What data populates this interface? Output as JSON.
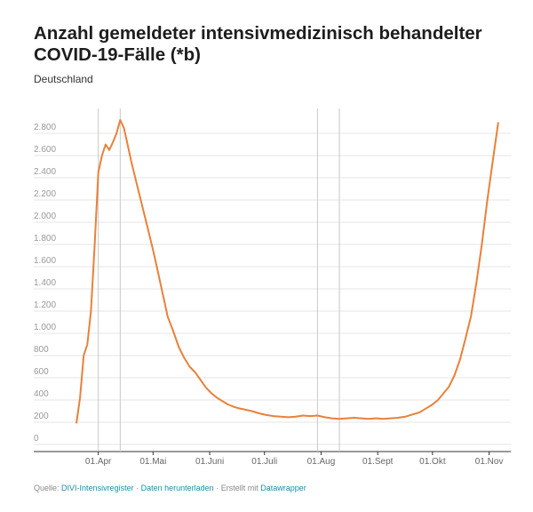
{
  "title": "Anzahl gemeldeter intensivmedizinisch behandelter COVID-19-Fälle (*b)",
  "subtitle": "Deutschland",
  "footer": {
    "source_prefix": "Quelle:",
    "source_link": "DIVI-Intensivregister",
    "sep1": "·",
    "download": "Daten herunterladen",
    "sep2": "·",
    "created_prefix": "Erstellt mit",
    "tool": "Datawrapper"
  },
  "colors": {
    "line": "#e8813a",
    "grid": "#e6e6e6",
    "vline": "#c8c8c8"
  },
  "chart_data": {
    "type": "line",
    "title": "Anzahl gemeldeter intensivmedizinisch behandelter COVID-19-Fälle (*b)",
    "subtitle": "Deutschland",
    "xlabel": "",
    "ylabel": "",
    "ylim": [
      0,
      2800
    ],
    "yticks": [
      {
        "v": 0,
        "label": "0"
      },
      {
        "v": 200,
        "label": "200"
      },
      {
        "v": 400,
        "label": "400"
      },
      {
        "v": 600,
        "label": "600"
      },
      {
        "v": 800,
        "label": "800"
      },
      {
        "v": 1000,
        "label": "1.000"
      },
      {
        "v": 1200,
        "label": "1.200"
      },
      {
        "v": 1400,
        "label": "1.400"
      },
      {
        "v": 1600,
        "label": "1.600"
      },
      {
        "v": 1800,
        "label": "1.800"
      },
      {
        "v": 2000,
        "label": "2.000"
      },
      {
        "v": 2200,
        "label": "2.200"
      },
      {
        "v": 2400,
        "label": "2.400"
      },
      {
        "v": 2600,
        "label": "2.600"
      },
      {
        "v": 2800,
        "label": "2.800"
      }
    ],
    "xticks": [
      {
        "d": "2020-04-01",
        "label": "01.Apr"
      },
      {
        "d": "2020-05-01",
        "label": "01.Mai"
      },
      {
        "d": "2020-06-01",
        "label": "01.Juni"
      },
      {
        "d": "2020-07-01",
        "label": "01.Juli"
      },
      {
        "d": "2020-08-01",
        "label": "01.Aug"
      },
      {
        "d": "2020-09-01",
        "label": "01.Sept"
      },
      {
        "d": "2020-10-01",
        "label": "01.Okt"
      },
      {
        "d": "2020-11-01",
        "label": "01.Nov"
      }
    ],
    "xlim": [
      "2020-03-20",
      "2020-11-08"
    ],
    "vertical_lines": [
      "2020-04-01",
      "2020-04-13",
      "2020-07-30",
      "2020-08-11"
    ],
    "grid": true,
    "series": [
      {
        "points": [
          [
            "2020-03-20",
            190
          ],
          [
            "2020-03-22",
            420
          ],
          [
            "2020-03-24",
            800
          ],
          [
            "2020-03-26",
            900
          ],
          [
            "2020-03-28",
            1200
          ],
          [
            "2020-03-30",
            1800
          ],
          [
            "2020-04-01",
            2450
          ],
          [
            "2020-04-03",
            2600
          ],
          [
            "2020-04-05",
            2700
          ],
          [
            "2020-04-07",
            2650
          ],
          [
            "2020-04-09",
            2720
          ],
          [
            "2020-04-11",
            2800
          ],
          [
            "2020-04-13",
            2920
          ],
          [
            "2020-04-15",
            2850
          ],
          [
            "2020-04-17",
            2700
          ],
          [
            "2020-04-19",
            2550
          ],
          [
            "2020-04-22",
            2350
          ],
          [
            "2020-04-25",
            2150
          ],
          [
            "2020-04-28",
            1950
          ],
          [
            "2020-05-01",
            1750
          ],
          [
            "2020-05-03",
            1600
          ],
          [
            "2020-05-05",
            1450
          ],
          [
            "2020-05-07",
            1300
          ],
          [
            "2020-05-09",
            1150
          ],
          [
            "2020-05-12",
            1020
          ],
          [
            "2020-05-15",
            880
          ],
          [
            "2020-05-18",
            780
          ],
          [
            "2020-05-21",
            700
          ],
          [
            "2020-05-24",
            650
          ],
          [
            "2020-05-27",
            580
          ],
          [
            "2020-05-30",
            510
          ],
          [
            "2020-06-02",
            460
          ],
          [
            "2020-06-05",
            420
          ],
          [
            "2020-06-08",
            390
          ],
          [
            "2020-06-11",
            360
          ],
          [
            "2020-06-14",
            340
          ],
          [
            "2020-06-17",
            325
          ],
          [
            "2020-06-20",
            315
          ],
          [
            "2020-06-24",
            300
          ],
          [
            "2020-06-28",
            280
          ],
          [
            "2020-07-02",
            265
          ],
          [
            "2020-07-06",
            255
          ],
          [
            "2020-07-10",
            250
          ],
          [
            "2020-07-14",
            245
          ],
          [
            "2020-07-18",
            250
          ],
          [
            "2020-07-22",
            260
          ],
          [
            "2020-07-26",
            255
          ],
          [
            "2020-07-30",
            260
          ],
          [
            "2020-08-03",
            245
          ],
          [
            "2020-08-07",
            235
          ],
          [
            "2020-08-11",
            230
          ],
          [
            "2020-08-15",
            235
          ],
          [
            "2020-08-19",
            240
          ],
          [
            "2020-08-23",
            235
          ],
          [
            "2020-08-27",
            230
          ],
          [
            "2020-08-31",
            235
          ],
          [
            "2020-09-04",
            230
          ],
          [
            "2020-09-08",
            235
          ],
          [
            "2020-09-12",
            240
          ],
          [
            "2020-09-16",
            250
          ],
          [
            "2020-09-20",
            270
          ],
          [
            "2020-09-24",
            290
          ],
          [
            "2020-09-28",
            330
          ],
          [
            "2020-10-01",
            360
          ],
          [
            "2020-10-04",
            400
          ],
          [
            "2020-10-07",
            460
          ],
          [
            "2020-10-10",
            520
          ],
          [
            "2020-10-13",
            620
          ],
          [
            "2020-10-16",
            760
          ],
          [
            "2020-10-19",
            950
          ],
          [
            "2020-10-22",
            1150
          ],
          [
            "2020-10-25",
            1450
          ],
          [
            "2020-10-28",
            1800
          ],
          [
            "2020-10-31",
            2200
          ],
          [
            "2020-11-03",
            2550
          ],
          [
            "2020-11-06",
            2900
          ]
        ]
      }
    ]
  }
}
